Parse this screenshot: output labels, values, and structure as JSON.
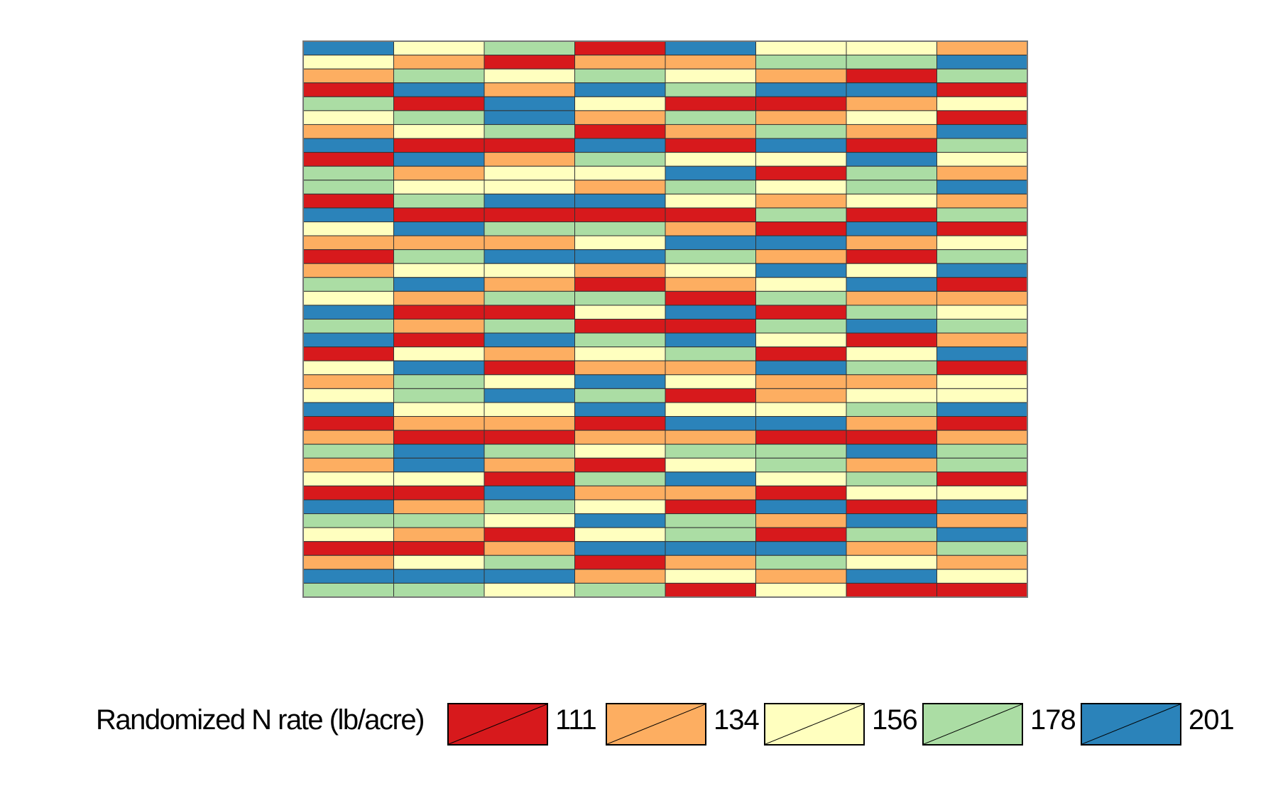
{
  "legend": {
    "title": "Randomized N rate (lb/acre)",
    "items": [
      {
        "value": "111",
        "color": "#d7191c"
      },
      {
        "value": "134",
        "color": "#fdae61"
      },
      {
        "value": "156",
        "color": "#ffffbf"
      },
      {
        "value": "178",
        "color": "#abdda4"
      },
      {
        "value": "201",
        "color": "#2b83ba"
      }
    ]
  },
  "plot_grid": {
    "columns": 8,
    "rows": 40,
    "cells": [
      [
        "201",
        "156",
        "178",
        "111",
        "201",
        "156",
        "156",
        "134"
      ],
      [
        "156",
        "134",
        "111",
        "134",
        "134",
        "178",
        "178",
        "201"
      ],
      [
        "134",
        "178",
        "156",
        "178",
        "156",
        "134",
        "111",
        "178"
      ],
      [
        "111",
        "201",
        "134",
        "201",
        "178",
        "201",
        "201",
        "111"
      ],
      [
        "178",
        "111",
        "201",
        "156",
        "111",
        "111",
        "134",
        "156"
      ],
      [
        "156",
        "178",
        "201",
        "134",
        "178",
        "134",
        "156",
        "111"
      ],
      [
        "134",
        "156",
        "178",
        "111",
        "134",
        "178",
        "134",
        "201"
      ],
      [
        "201",
        "111",
        "111",
        "201",
        "111",
        "201",
        "111",
        "178"
      ],
      [
        "111",
        "201",
        "134",
        "178",
        "156",
        "156",
        "201",
        "156"
      ],
      [
        "178",
        "134",
        "156",
        "156",
        "201",
        "111",
        "178",
        "134"
      ],
      [
        "178",
        "156",
        "156",
        "134",
        "178",
        "156",
        "178",
        "201"
      ],
      [
        "111",
        "178",
        "201",
        "201",
        "156",
        "134",
        "156",
        "134"
      ],
      [
        "201",
        "111",
        "111",
        "111",
        "111",
        "178",
        "111",
        "178"
      ],
      [
        "156",
        "201",
        "178",
        "178",
        "134",
        "111",
        "201",
        "111"
      ],
      [
        "134",
        "134",
        "134",
        "156",
        "201",
        "201",
        "134",
        "156"
      ],
      [
        "111",
        "178",
        "201",
        "201",
        "178",
        "134",
        "111",
        "178"
      ],
      [
        "134",
        "156",
        "156",
        "134",
        "156",
        "201",
        "156",
        "201"
      ],
      [
        "178",
        "201",
        "134",
        "111",
        "134",
        "156",
        "201",
        "111"
      ],
      [
        "156",
        "134",
        "178",
        "178",
        "111",
        "178",
        "134",
        "134"
      ],
      [
        "201",
        "111",
        "111",
        "156",
        "201",
        "111",
        "178",
        "156"
      ],
      [
        "178",
        "134",
        "178",
        "111",
        "111",
        "178",
        "201",
        "178"
      ],
      [
        "201",
        "111",
        "201",
        "178",
        "201",
        "156",
        "111",
        "134"
      ],
      [
        "111",
        "156",
        "134",
        "156",
        "178",
        "111",
        "156",
        "201"
      ],
      [
        "156",
        "201",
        "111",
        "134",
        "134",
        "201",
        "178",
        "111"
      ],
      [
        "134",
        "178",
        "156",
        "201",
        "156",
        "134",
        "134",
        "156"
      ],
      [
        "156",
        "178",
        "201",
        "178",
        "111",
        "134",
        "156",
        "156"
      ],
      [
        "201",
        "156",
        "156",
        "201",
        "156",
        "156",
        "178",
        "201"
      ],
      [
        "111",
        "134",
        "134",
        "111",
        "201",
        "201",
        "134",
        "111"
      ],
      [
        "134",
        "111",
        "111",
        "134",
        "134",
        "111",
        "111",
        "134"
      ],
      [
        "178",
        "201",
        "178",
        "156",
        "178",
        "178",
        "201",
        "178"
      ],
      [
        "134",
        "201",
        "134",
        "111",
        "156",
        "178",
        "134",
        "178"
      ],
      [
        "156",
        "156",
        "111",
        "178",
        "201",
        "156",
        "178",
        "111"
      ],
      [
        "111",
        "111",
        "201",
        "134",
        "134",
        "111",
        "156",
        "156"
      ],
      [
        "201",
        "134",
        "178",
        "156",
        "111",
        "201",
        "111",
        "201"
      ],
      [
        "178",
        "178",
        "156",
        "201",
        "178",
        "134",
        "201",
        "134"
      ],
      [
        "156",
        "134",
        "111",
        "156",
        "178",
        "111",
        "178",
        "201"
      ],
      [
        "111",
        "111",
        "134",
        "201",
        "201",
        "201",
        "134",
        "178"
      ],
      [
        "134",
        "156",
        "178",
        "111",
        "134",
        "178",
        "156",
        "134"
      ],
      [
        "201",
        "201",
        "201",
        "134",
        "156",
        "134",
        "201",
        "156"
      ],
      [
        "178",
        "178",
        "156",
        "178",
        "111",
        "156",
        "111",
        "111"
      ]
    ]
  }
}
